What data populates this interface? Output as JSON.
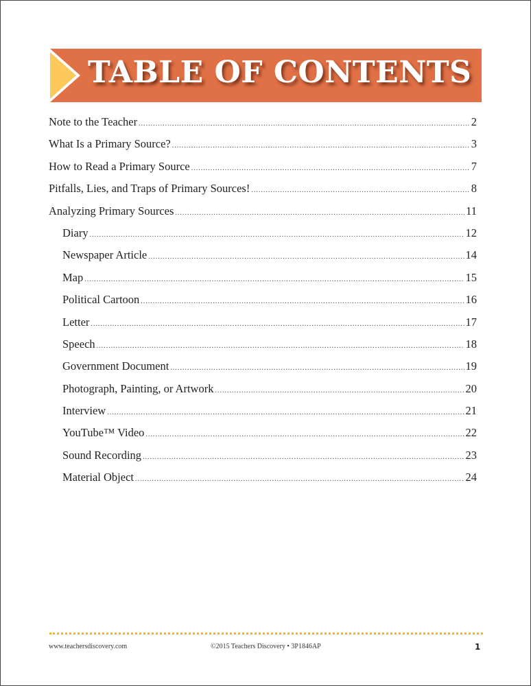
{
  "title": "TABLE OF CONTENTS",
  "colors": {
    "banner": "#e07046",
    "arrow": "#fcc95a",
    "footer_dots": "#f2b51c"
  },
  "entries": [
    {
      "label": "Note to the Teacher",
      "page": "2",
      "level": 1
    },
    {
      "label": "What Is a Primary Source?",
      "page": "3",
      "level": 1
    },
    {
      "label": "How to Read a Primary Source",
      "page": "7",
      "level": 1
    },
    {
      "label": "Pitfalls, Lies, and Traps of Primary Sources!",
      "page": "8",
      "level": 1
    },
    {
      "label": "Analyzing Primary Sources",
      "page": "11",
      "level": 1
    },
    {
      "label": "Diary",
      "page": "12",
      "level": 2
    },
    {
      "label": "Newspaper Article",
      "page": "14",
      "level": 2
    },
    {
      "label": "Map",
      "page": "15",
      "level": 2
    },
    {
      "label": "Political Cartoon",
      "page": "16",
      "level": 2
    },
    {
      "label": "Letter",
      "page": "17",
      "level": 2
    },
    {
      "label": "Speech",
      "page": "18",
      "level": 2
    },
    {
      "label": "Government Document",
      "page": "19",
      "level": 2
    },
    {
      "label": "Photograph, Painting, or Artwork",
      "page": "20",
      "level": 2
    },
    {
      "label": "Interview",
      "page": "21",
      "level": 2
    },
    {
      "label": "YouTube™ Video",
      "page": "22",
      "level": 2
    },
    {
      "label": "Sound Recording",
      "page": "23",
      "level": 2
    },
    {
      "label": "Material Object",
      "page": "24",
      "level": 2
    }
  ],
  "footer": {
    "website": "www.teachersdiscovery.com",
    "copyright": "©2015 Teachers Discovery • 3P1846AP",
    "page_number": "1"
  }
}
